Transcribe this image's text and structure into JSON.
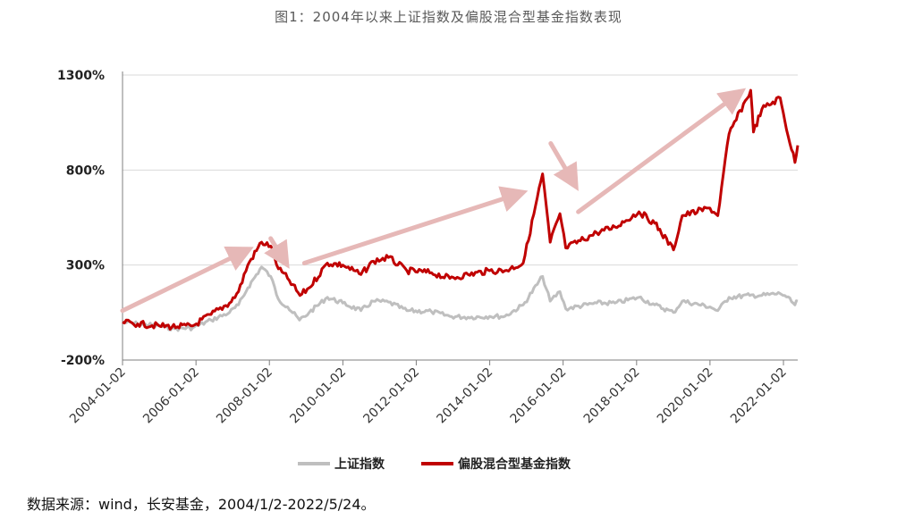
{
  "title": "图1：2004年以来上证指数及偏股混合型基金指数表现",
  "source_note": "数据来源：wind，长安基金，2004/1/2-2022/5/24。",
  "colors": {
    "sse": "#bfbfbf",
    "fund": "#c00000",
    "arrow": "#e6b8b7",
    "axis": "#7f7f7f"
  },
  "chart_data": {
    "type": "line",
    "title": "图1：2004年以来上证指数及偏股混合型基金指数表现",
    "xlabel": "",
    "ylabel": "",
    "ylim": [
      -200,
      1300
    ],
    "y_ticks": [
      "1300%",
      "800%",
      "300%",
      "-200%"
    ],
    "y_tick_values": [
      1300,
      800,
      300,
      -200
    ],
    "x_ticks": [
      "2004-01-02",
      "2006-01-02",
      "2008-01-02",
      "2010-01-02",
      "2012-01-02",
      "2014-01-02",
      "2016-01-02",
      "2018-01-02",
      "2020-01-02",
      "2022-01-02"
    ],
    "x_range": [
      "2004-01-02",
      "2022-05-24"
    ],
    "grid": "horizontal",
    "legend_position": "bottom-center",
    "series": [
      {
        "name": "上证指数",
        "points": [
          [
            "2004-01-02",
            0
          ],
          [
            "2004-06-01",
            -10
          ],
          [
            "2005-01-01",
            -20
          ],
          [
            "2005-06-01",
            -35
          ],
          [
            "2005-12-01",
            -30
          ],
          [
            "2006-06-01",
            10
          ],
          [
            "2006-12-01",
            50
          ],
          [
            "2007-03-01",
            90
          ],
          [
            "2007-06-01",
            180
          ],
          [
            "2007-10-16",
            290
          ],
          [
            "2008-01-15",
            240
          ],
          [
            "2008-04-01",
            120
          ],
          [
            "2008-07-01",
            80
          ],
          [
            "2008-10-28",
            10
          ],
          [
            "2009-02-01",
            50
          ],
          [
            "2009-08-01",
            130
          ],
          [
            "2010-01-01,",
            100
          ],
          [
            "2010-07-01",
            60
          ],
          [
            "2010-11-01",
            110
          ],
          [
            "2011-04-01",
            105
          ],
          [
            "2011-10-01",
            60
          ],
          [
            "2012-06-01",
            55
          ],
          [
            "2012-12-01",
            30
          ],
          [
            "2013-06-01",
            25
          ],
          [
            "2014-01-01",
            30
          ],
          [
            "2014-06-01",
            30
          ],
          [
            "2014-12-01",
            90
          ],
          [
            "2015-06-12",
            240
          ],
          [
            "2015-08-26",
            110
          ],
          [
            "2015-12-01",
            160
          ],
          [
            "2016-01-28",
            70
          ],
          [
            "2016-12-01",
            100
          ],
          [
            "2017-06-01",
            100
          ],
          [
            "2018-01-26",
            130
          ],
          [
            "2018-07-01",
            90
          ],
          [
            "2019-01-04",
            50
          ],
          [
            "2019-04-01",
            110
          ],
          [
            "2020-01-01",
            80
          ],
          [
            "2020-03-20",
            60
          ],
          [
            "2020-07-10",
            130
          ],
          [
            "2021-02-01",
            140
          ],
          [
            "2021-06-01",
            140
          ],
          [
            "2021-12-01",
            150
          ],
          [
            "2022-01-15",
            140
          ],
          [
            "2022-04-26",
            90
          ],
          [
            "2022-05-24",
            110
          ]
        ]
      },
      {
        "name": "偏股混合型基金指数",
        "points": [
          [
            "2004-01-02",
            0
          ],
          [
            "2004-06-01",
            -10
          ],
          [
            "2005-01-01",
            -20
          ],
          [
            "2005-07-01",
            -25
          ],
          [
            "2005-12-01",
            -20
          ],
          [
            "2006-06-01",
            40
          ],
          [
            "2006-12-01",
            100
          ],
          [
            "2007-03-01",
            160
          ],
          [
            "2007-06-01",
            300
          ],
          [
            "2007-10-16",
            420
          ],
          [
            "2008-01-15",
            400
          ],
          [
            "2008-04-01",
            280
          ],
          [
            "2008-07-01",
            230
          ],
          [
            "2008-11-01",
            140
          ],
          [
            "2009-02-01",
            180
          ],
          [
            "2009-08-01",
            310
          ],
          [
            "2010-01-01",
            300
          ],
          [
            "2010-07-01",
            250
          ],
          [
            "2010-11-01",
            320
          ],
          [
            "2011-04-01",
            340
          ],
          [
            "2011-10-01",
            270
          ],
          [
            "2012-06-01",
            260
          ],
          [
            "2012-12-01",
            230
          ],
          [
            "2013-06-01",
            250
          ],
          [
            "2014-01-01",
            270
          ],
          [
            "2014-06-01",
            270
          ],
          [
            "2014-12-01",
            310
          ],
          [
            "2015-06-12",
            780
          ],
          [
            "2015-08-26",
            420
          ],
          [
            "2015-12-01",
            570
          ],
          [
            "2016-01-28",
            390
          ],
          [
            "2016-12-01",
            470
          ],
          [
            "2017-06-01",
            500
          ],
          [
            "2018-01-26",
            580
          ],
          [
            "2018-07-01",
            520
          ],
          [
            "2019-01-04",
            380
          ],
          [
            "2019-04-01",
            560
          ],
          [
            "2020-01-01",
            600
          ],
          [
            "2020-03-20",
            560
          ],
          [
            "2020-07-10",
            990
          ],
          [
            "2021-02-10",
            1220
          ],
          [
            "2021-03-10",
            1000
          ],
          [
            "2021-06-01",
            1120
          ],
          [
            "2021-12-01",
            1180
          ],
          [
            "2022-01-15",
            1060
          ],
          [
            "2022-04-26",
            840
          ],
          [
            "2022-05-24",
            930
          ]
        ]
      }
    ]
  }
}
